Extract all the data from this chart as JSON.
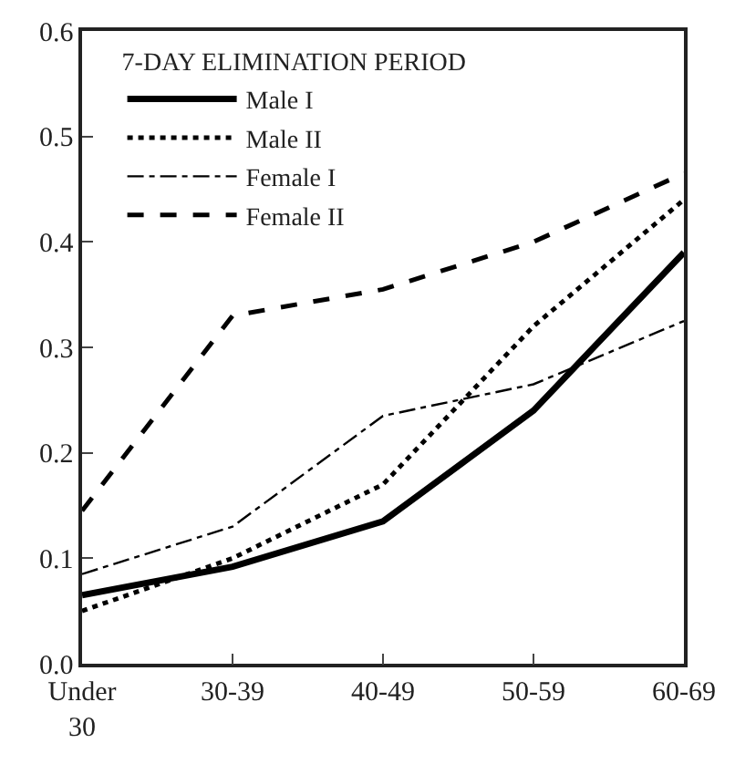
{
  "chart_data": {
    "type": "line",
    "legend_title": "7-DAY ELIMINATION PERIOD",
    "categories": [
      "Under 30",
      "30-39",
      "40-49",
      "50-59",
      "60-69"
    ],
    "series": [
      {
        "name": "Male I",
        "color": "#000000",
        "line_style": "solid",
        "values": [
          0.065,
          0.092,
          0.135,
          0.24,
          0.39
        ]
      },
      {
        "name": "Male II",
        "color": "#000000",
        "line_style": "dotted",
        "values": [
          0.05,
          0.1,
          0.17,
          0.32,
          0.44
        ]
      },
      {
        "name": "Female I",
        "color": "#000000",
        "line_style": "dashdot",
        "values": [
          0.085,
          0.13,
          0.235,
          0.265,
          0.325
        ]
      },
      {
        "name": "Female II",
        "color": "#000000",
        "line_style": "dashed",
        "values": [
          0.145,
          0.33,
          0.355,
          0.4,
          0.465
        ]
      }
    ],
    "ylim": [
      0,
      0.6
    ],
    "yticks": [
      {
        "value": 0,
        "label": "0.0"
      },
      0.1,
      0.2,
      0.3,
      0.4,
      0.5,
      0.6
    ],
    "legend": "top left",
    "marker": "none"
  }
}
